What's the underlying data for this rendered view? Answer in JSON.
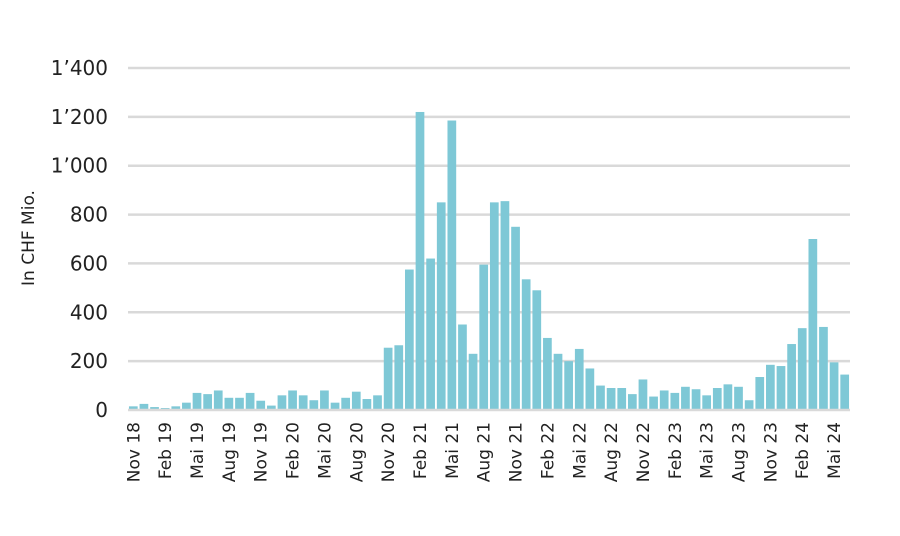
{
  "chart_data": {
    "type": "bar",
    "title": "",
    "ylabel": "In CHF Mio.",
    "ylim": [
      0,
      1400
    ],
    "yticks": [
      {
        "value": 0,
        "label": "0"
      },
      {
        "value": 200,
        "label": "200"
      },
      {
        "value": 400,
        "label": "400"
      },
      {
        "value": 600,
        "label": "600"
      },
      {
        "value": 800,
        "label": "800"
      },
      {
        "value": 1000,
        "label": "1’000"
      },
      {
        "value": 1200,
        "label": "1’200"
      },
      {
        "value": 1400,
        "label": "1’400"
      }
    ],
    "grid": true,
    "bar_color": "#7ec8d6",
    "grid_color": "#d9d9d9",
    "x_tick_labels": [
      {
        "index": 0,
        "label": "Nov 18"
      },
      {
        "index": 3,
        "label": "Feb 19"
      },
      {
        "index": 6,
        "label": "Mai 19"
      },
      {
        "index": 9,
        "label": "Aug 19"
      },
      {
        "index": 12,
        "label": "Nov 19"
      },
      {
        "index": 15,
        "label": "Feb 20"
      },
      {
        "index": 18,
        "label": "Mai 20"
      },
      {
        "index": 21,
        "label": "Aug 20"
      },
      {
        "index": 24,
        "label": "Nov 20"
      },
      {
        "index": 27,
        "label": "Feb 21"
      },
      {
        "index": 30,
        "label": "Mai 21"
      },
      {
        "index": 33,
        "label": "Aug 21"
      },
      {
        "index": 36,
        "label": "Nov 21"
      },
      {
        "index": 39,
        "label": "Feb 22"
      },
      {
        "index": 42,
        "label": "Mai 22"
      },
      {
        "index": 45,
        "label": "Aug 22"
      },
      {
        "index": 48,
        "label": "Nov 22"
      },
      {
        "index": 51,
        "label": "Feb 23"
      },
      {
        "index": 54,
        "label": "Mai 23"
      },
      {
        "index": 57,
        "label": "Aug 23"
      },
      {
        "index": 60,
        "label": "Nov 23"
      },
      {
        "index": 63,
        "label": "Feb 24"
      },
      {
        "index": 66,
        "label": "Mai 24"
      }
    ],
    "x": [
      "Nov 18",
      "Dec 18",
      "Jan 19",
      "Feb 19",
      "Mar 19",
      "Apr 19",
      "Mai 19",
      "Jun 19",
      "Jul 19",
      "Aug 19",
      "Sep 19",
      "Oct 19",
      "Nov 19",
      "Dec 19",
      "Jan 20",
      "Feb 20",
      "Mar 20",
      "Apr 20",
      "Mai 20",
      "Jun 20",
      "Jul 20",
      "Aug 20",
      "Sep 20",
      "Oct 20",
      "Nov 20",
      "Dec 20",
      "Jan 21",
      "Feb 21",
      "Mar 21",
      "Apr 21",
      "Mai 21",
      "Jun 21",
      "Jul 21",
      "Aug 21",
      "Sep 21",
      "Oct 21",
      "Nov 21",
      "Dec 21",
      "Jan 22",
      "Feb 22",
      "Mar 22",
      "Apr 22",
      "Mai 22",
      "Jun 22",
      "Jul 22",
      "Aug 22",
      "Sep 22",
      "Oct 22",
      "Nov 22",
      "Dec 22",
      "Jan 23",
      "Feb 23",
      "Mar 23",
      "Apr 23",
      "Mai 23",
      "Jun 23",
      "Jul 23",
      "Aug 23",
      "Sep 23",
      "Oct 23",
      "Nov 23",
      "Dec 23",
      "Jan 24",
      "Feb 24",
      "Mar 24",
      "Apr 24",
      "Mai 24",
      "Jun 24"
    ],
    "values": [
      15,
      25,
      12,
      8,
      15,
      30,
      70,
      65,
      80,
      50,
      50,
      70,
      38,
      18,
      60,
      80,
      60,
      40,
      80,
      30,
      50,
      75,
      45,
      60,
      255,
      265,
      575,
      1220,
      620,
      850,
      1185,
      350,
      230,
      595,
      850,
      855,
      750,
      535,
      490,
      295,
      230,
      200,
      250,
      170,
      100,
      90,
      90,
      65,
      125,
      55,
      80,
      70,
      95,
      85,
      60,
      90,
      105,
      95,
      40,
      135,
      185,
      180,
      270,
      335,
      700,
      340,
      195,
      145
    ]
  }
}
